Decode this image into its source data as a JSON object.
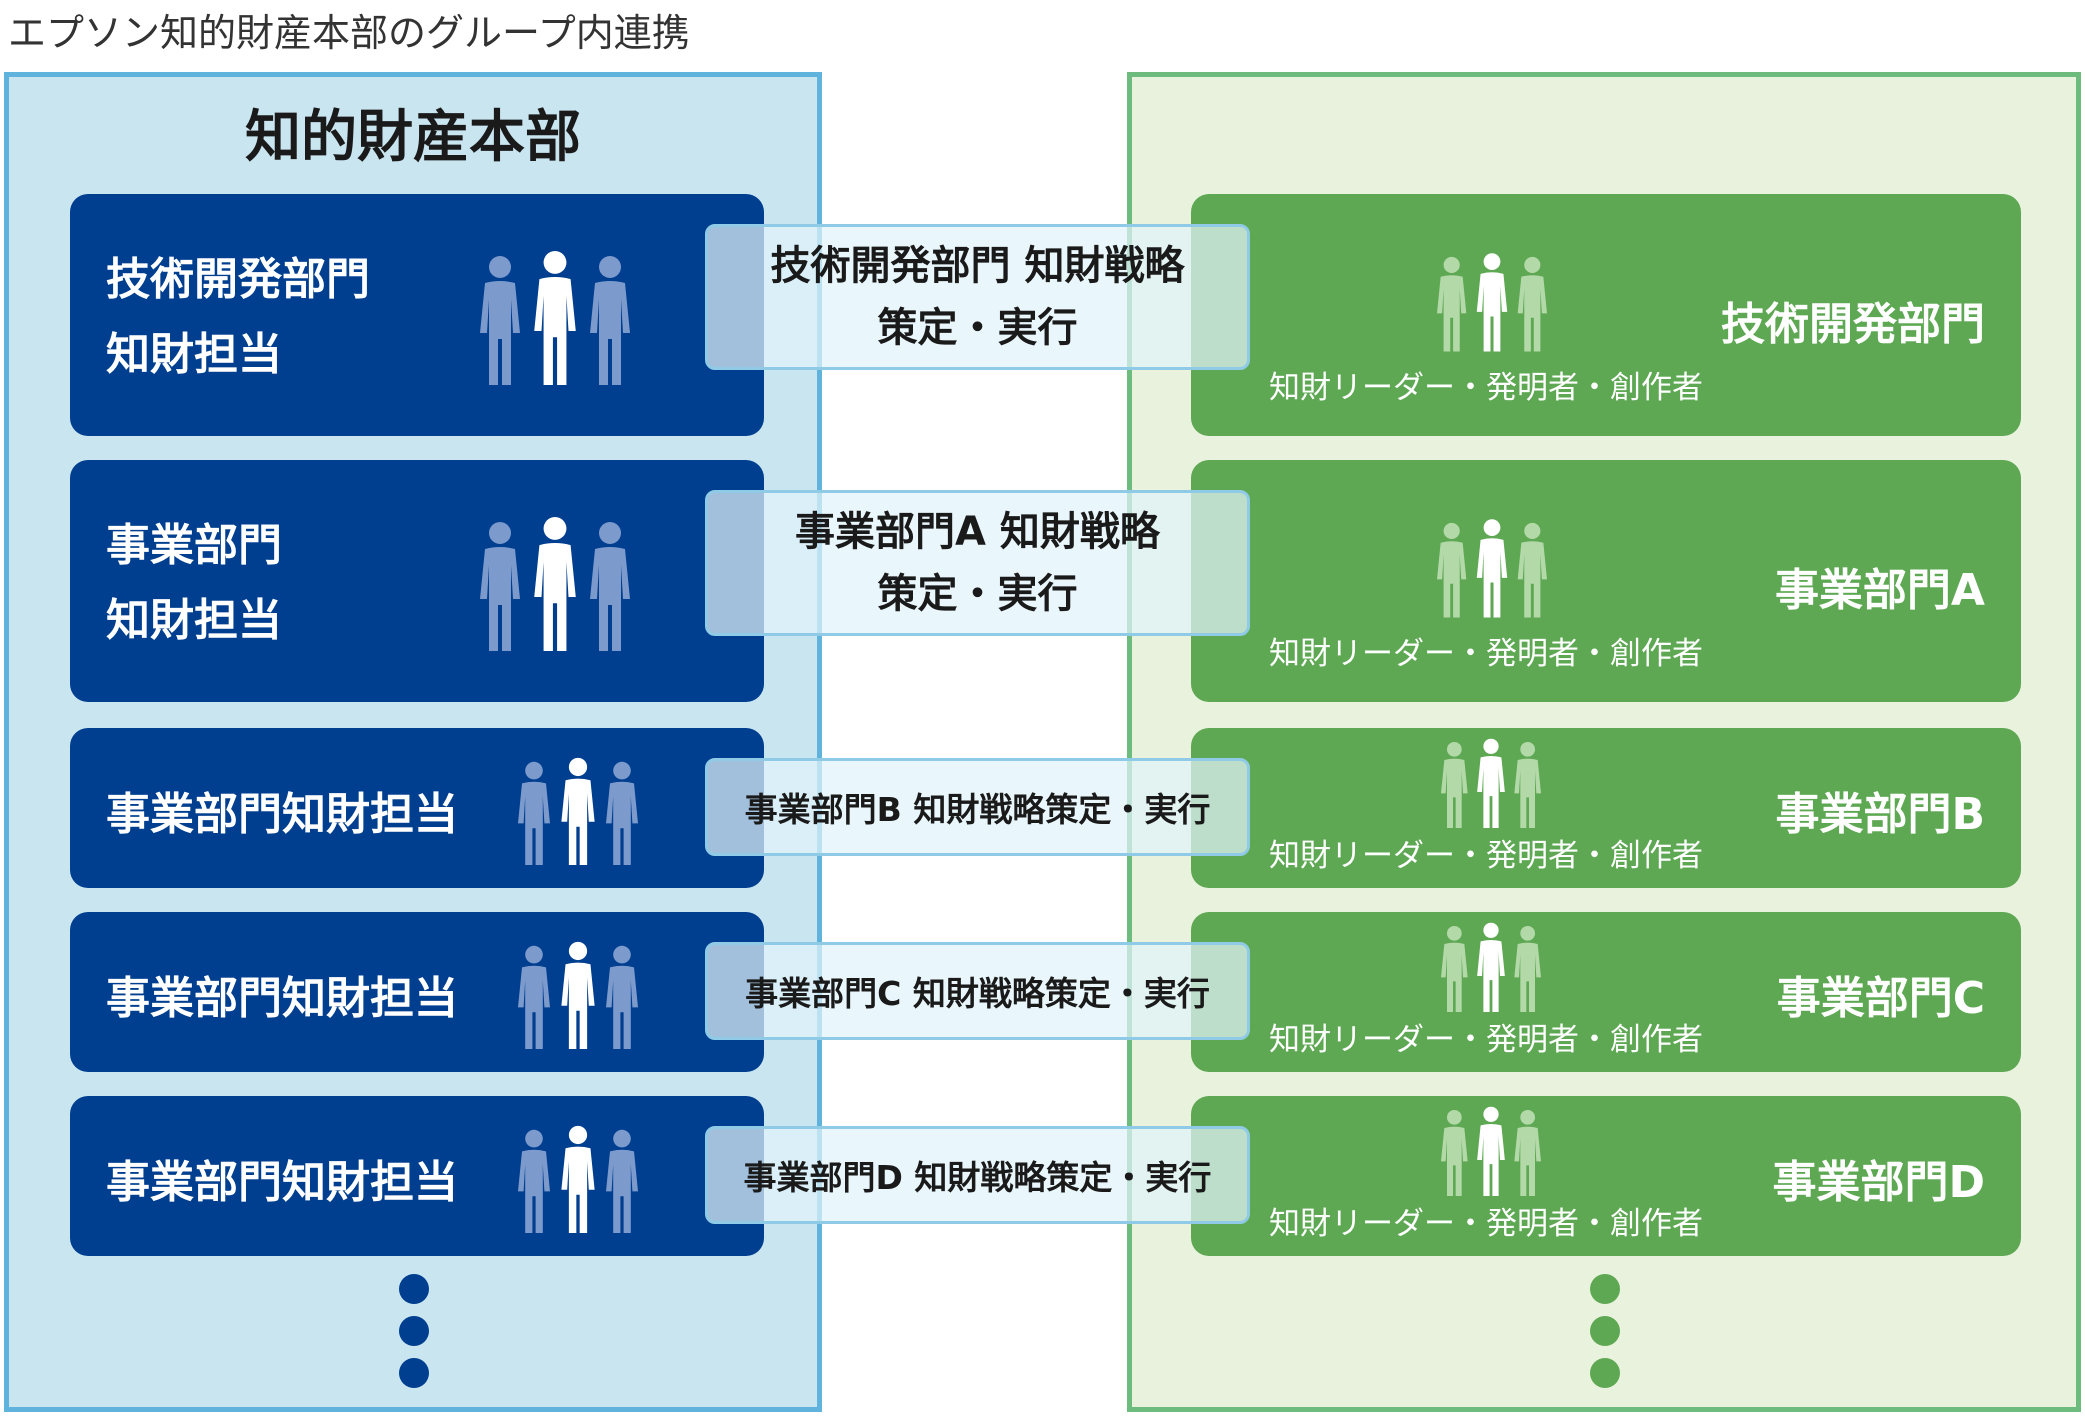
{
  "page_title": "エプソン知的財産本部のグループ内連携",
  "hq_title": "知的財産本部",
  "left_boxes": [
    {
      "line1": "技術開発部門",
      "line2": "知財担当"
    },
    {
      "line1": "事業部門",
      "line2": "知財担当"
    },
    {
      "label": "事業部門知財担当"
    },
    {
      "label": "事業部門知財担当"
    },
    {
      "label": "事業部門知財担当"
    }
  ],
  "strategy": [
    {
      "line1": "技術開発部門 知財戦略",
      "line2": "策定・実行"
    },
    {
      "line1": "事業部門A 知財戦略",
      "line2": "策定・実行"
    },
    {
      "label": "事業部門B 知財戦略策定・実行"
    },
    {
      "label": "事業部門C 知財戦略策定・実行"
    },
    {
      "label": "事業部門D 知財戦略策定・実行"
    }
  ],
  "right_boxes": [
    {
      "title": "技術開発部門",
      "subtitle": "知財リーダー・発明者・創作者"
    },
    {
      "title": "事業部門A",
      "subtitle": "知財リーダー・発明者・創作者"
    },
    {
      "title": "事業部門B",
      "subtitle": "知財リーダー・発明者・創作者"
    },
    {
      "title": "事業部門C",
      "subtitle": "知財リーダー・発明者・創作者"
    },
    {
      "title": "事業部門D",
      "subtitle": "知財リーダー・発明者・創作者"
    }
  ],
  "icons": {
    "people": "people-group-icon",
    "ellipsis": "vertical-ellipsis"
  },
  "colors": {
    "left_panel_bg": "#c9e5f0",
    "left_panel_border": "#5fb3dc",
    "right_panel_bg": "#e9f2dc",
    "right_panel_border": "#6dbb7d",
    "blue_box": "#003e8f",
    "green_box": "#5ea854",
    "strategy_bg": "#e0f2fa"
  }
}
